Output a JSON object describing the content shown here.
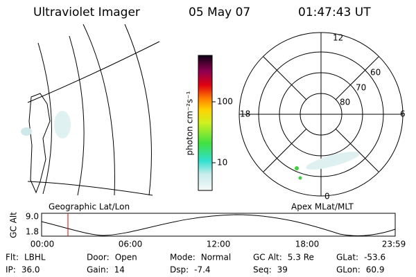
{
  "header": {
    "title": "Ultraviolet Imager",
    "date": "05 May 07",
    "time": "01:47:43 UT"
  },
  "colorbar": {
    "label": "photon cm⁻²s⁻¹",
    "ticks": [
      "100",
      "10"
    ]
  },
  "polar": {
    "mlt_labels": [
      "12",
      "6",
      "0",
      "18"
    ],
    "lat_labels": [
      "60",
      "70",
      "80"
    ]
  },
  "map_label": "Geographic Lat/Lon",
  "polar_label": "Apex MLat/MLT",
  "altitude_plot": {
    "y_label": "GC Alt",
    "y_ticks": [
      "9.0",
      "1.8"
    ],
    "x_ticks": [
      "00:00",
      "06:00",
      "12:00",
      "18:00",
      "23:59"
    ]
  },
  "status": [
    [
      {
        "label": "Flt:",
        "value": "LBHL"
      },
      {
        "label": "Door:",
        "value": "Open"
      },
      {
        "label": "Mode:",
        "value": "Normal"
      },
      {
        "label": "GC Alt:",
        "value": "5.3 Re"
      },
      {
        "label": "GLat:",
        "value": "-53.6"
      }
    ],
    [
      {
        "label": "IP:",
        "value": "36.0"
      },
      {
        "label": "Gain:",
        "value": "14"
      },
      {
        "label": "Dsp:",
        "value": "-7.4"
      },
      {
        "label": "Seq:",
        "value": "39"
      },
      {
        "label": "GLon:",
        "value": "60.9"
      }
    ]
  ]
}
